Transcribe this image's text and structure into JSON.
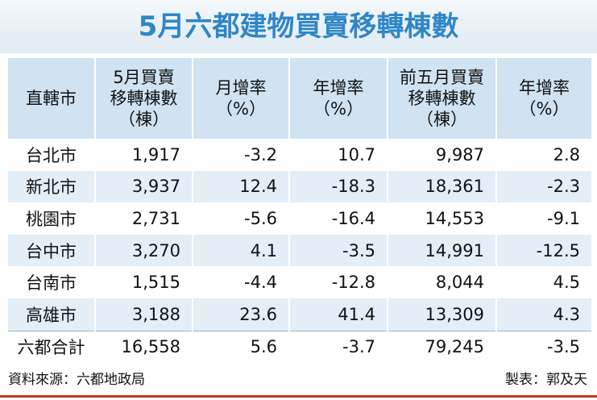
{
  "header": {
    "title": "5月六都建物買賣移轉棟數"
  },
  "table": {
    "columns": [
      [
        "直轄市"
      ],
      [
        "5月買賣",
        "移轉棟數",
        "（棟）"
      ],
      [
        "月增率",
        "（%）"
      ],
      [
        "年增率",
        "（%）"
      ],
      [
        "前五月買賣",
        "移轉棟數",
        "（棟）"
      ],
      [
        "年增率",
        "（%）"
      ]
    ],
    "rows": [
      [
        "台北市",
        "1,917",
        "-3.2",
        "10.7",
        "9,987",
        "2.8"
      ],
      [
        "新北市",
        "3,937",
        "12.4",
        "-18.3",
        "18,361",
        "-2.3"
      ],
      [
        "桃園市",
        "2,731",
        "-5.6",
        "-16.4",
        "14,553",
        "-9.1"
      ],
      [
        "台中市",
        "3,270",
        "4.1",
        "-3.5",
        "14,991",
        "-12.5"
      ],
      [
        "台南市",
        "1,515",
        "-4.4",
        "-12.8",
        "8,044",
        "4.5"
      ],
      [
        "高雄市",
        "3,188",
        "23.6",
        "41.4",
        "13,309",
        "4.3"
      ],
      [
        "六都合計",
        "16,558",
        "5.6",
        "-3.7",
        "79,245",
        "-3.5"
      ]
    ]
  },
  "footer": {
    "source": "資料來源：六都地政局",
    "credit": "製表：郭及天"
  }
}
